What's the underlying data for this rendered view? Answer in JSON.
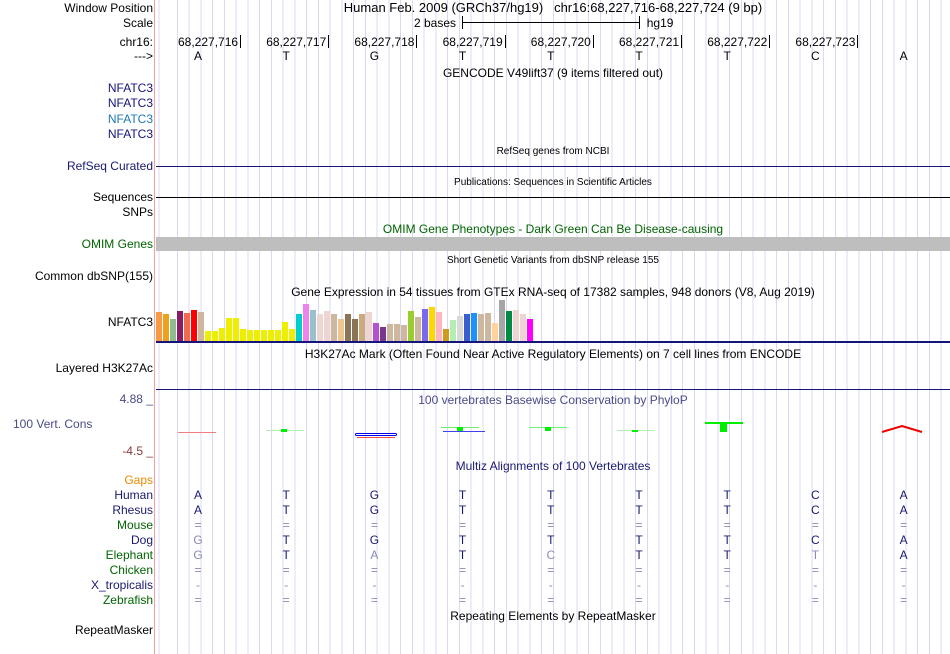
{
  "header": {
    "window_position_label": "Window Position",
    "assembly": "Human Feb. 2009 (GRCh37/hg19)",
    "position": "chr16:68,227,716-68,227,724 (9 bp)",
    "scale_label": "Scale",
    "scale_text": "2 bases",
    "scale_db": "hg19",
    "chrom_label": "chr16:",
    "strand_label": "--->"
  },
  "ticks": [
    "68,227,716",
    "68,227,717",
    "68,227,718",
    "68,227,719",
    "68,227,720",
    "68,227,721",
    "68,227,722",
    "68,227,723"
  ],
  "bases": [
    "A",
    "T",
    "G",
    "T",
    "T",
    "T",
    "T",
    "C",
    "A"
  ],
  "tracks": {
    "gencode": {
      "title": "GENCODE V49lift37 (9 items filtered out)",
      "items": [
        "NFATC3",
        "NFATC3",
        "NFATC3",
        "NFATC3"
      ],
      "colors": [
        "#14147a",
        "#14147a",
        "#1f78b4",
        "#14147a"
      ]
    },
    "refseq": {
      "title": "RefSeq genes from NCBI",
      "label": "RefSeq Curated"
    },
    "pubs": {
      "title": "Publications: Sequences in Scientific Articles",
      "label": "Sequences"
    },
    "snps": {
      "label": "SNPs"
    },
    "omim": {
      "title": "OMIM Gene Phenotypes - Dark Green Can Be Disease-causing",
      "label": "OMIM Genes"
    },
    "dbsnp": {
      "title": "Short Genetic Variants from dbSNP release 155",
      "label": "Common dbSNP(155)"
    },
    "gtex": {
      "title": "Gene Expression in 54 tissues from GTEx RNA-seq of 17382 samples, 948 donors (V8, Aug 2019)",
      "label": "NFATC3",
      "values": [
        29,
        27,
        22,
        30,
        28,
        31,
        29,
        10,
        10,
        13,
        23,
        23,
        12,
        11,
        11,
        11,
        11,
        11,
        19,
        12,
        27,
        37,
        31,
        27,
        30,
        27,
        22,
        27,
        22,
        27,
        29,
        18,
        14,
        17,
        17,
        16,
        30,
        24,
        32,
        34,
        29,
        12,
        21,
        25,
        27,
        28,
        27,
        28,
        18,
        41,
        30,
        31,
        27,
        22
      ],
      "colors": [
        "#f79a48",
        "#eea11b",
        "#8fbc8f",
        "#8b1c62",
        "#ee6a50",
        "#ff0000",
        "#cdb79e",
        "#eeee00",
        "#eeee00",
        "#eeee00",
        "#eeee00",
        "#eeee00",
        "#eeee00",
        "#eeee00",
        "#eeee00",
        "#eeee00",
        "#eeee00",
        "#eeee00",
        "#eeee00",
        "#eeee00",
        "#00cdcd",
        "#ee82ee",
        "#9ac0cd",
        "#eed5d2",
        "#eed5d2",
        "#cdb79e",
        "#eec591",
        "#8b7355",
        "#8b7355",
        "#cdaa7d",
        "#eed5d2",
        "#b452cd",
        "#7a378b",
        "#cdb79e",
        "#cdb79e",
        "#cdb79e",
        "#9acd32",
        "#cdb79e",
        "#7b68ee",
        "#ffd700",
        "#ffb6c1",
        "#cd9b1d",
        "#b4eeb4",
        "#d9d9d9",
        "#3a5fcd",
        "#1e90ff",
        "#cdb79e",
        "#cdb79e",
        "#ffd39b",
        "#a6a6a6",
        "#008b45",
        "#eed5d2",
        "#eed5d2",
        "#ff00ff"
      ]
    },
    "h3k27ac": {
      "title": "H3K27Ac Mark (Often Found Near Active Regulatory Elements) on 7 cell lines from ENCODE",
      "label": "Layered H3K27Ac"
    },
    "cons": {
      "title": "100 vertebrates Basewise Conservation by PhyloP",
      "label": "100 Vert. Cons",
      "ymax": "4.88 _",
      "ymin": "-4.5 _"
    },
    "multiz": {
      "title": "Multiz Alignments of 100 Vertebrates",
      "gaps_label": "Gaps",
      "species": [
        {
          "name": "Human",
          "color": "#191970",
          "seq": [
            "A",
            "T",
            "G",
            "T",
            "T",
            "T",
            "T",
            "C",
            "A"
          ],
          "dim": [
            0,
            0,
            0,
            0,
            0,
            0,
            0,
            0,
            0
          ]
        },
        {
          "name": "Rhesus",
          "color": "#191970",
          "seq": [
            "A",
            "T",
            "G",
            "T",
            "T",
            "T",
            "T",
            "C",
            "A"
          ],
          "dim": [
            0,
            0,
            0,
            0,
            0,
            0,
            0,
            0,
            0
          ]
        },
        {
          "name": "Mouse",
          "color": "#006400",
          "seq": [
            "=",
            "=",
            "=",
            "=",
            "=",
            "=",
            "=",
            "=",
            "="
          ],
          "dim": [
            1,
            1,
            1,
            1,
            1,
            1,
            1,
            1,
            1
          ]
        },
        {
          "name": "Dog",
          "color": "#191970",
          "seq": [
            "G",
            "T",
            "G",
            "T",
            "T",
            "T",
            "T",
            "C",
            "A"
          ],
          "dim": [
            1,
            0,
            0,
            0,
            0,
            0,
            0,
            0,
            0
          ]
        },
        {
          "name": "Elephant",
          "color": "#006400",
          "seq": [
            "G",
            "T",
            "A",
            "T",
            "C",
            "T",
            "T",
            "T",
            "A"
          ],
          "dim": [
            1,
            0,
            1,
            0,
            1,
            0,
            0,
            1,
            0
          ]
        },
        {
          "name": "Chicken",
          "color": "#006400",
          "seq": [
            "=",
            "=",
            "=",
            "=",
            "=",
            "=",
            "=",
            "=",
            "="
          ],
          "dim": [
            1,
            1,
            1,
            1,
            1,
            1,
            1,
            1,
            1
          ]
        },
        {
          "name": "X_tropicalis",
          "color": "#191970",
          "seq": [
            "-",
            "-",
            "-",
            "-",
            "-",
            "-",
            "-",
            "-",
            "-"
          ],
          "dim": [
            1,
            1,
            1,
            1,
            1,
            1,
            1,
            1,
            1
          ]
        },
        {
          "name": "Zebrafish",
          "color": "#006400",
          "seq": [
            "=",
            "=",
            "=",
            "=",
            "=",
            "=",
            "=",
            "=",
            "="
          ],
          "dim": [
            1,
            1,
            1,
            1,
            1,
            1,
            1,
            1,
            1
          ]
        }
      ]
    },
    "repeatmasker": {
      "title": "Repeating Elements by RepeatMasker",
      "label": "RepeatMasker"
    }
  }
}
